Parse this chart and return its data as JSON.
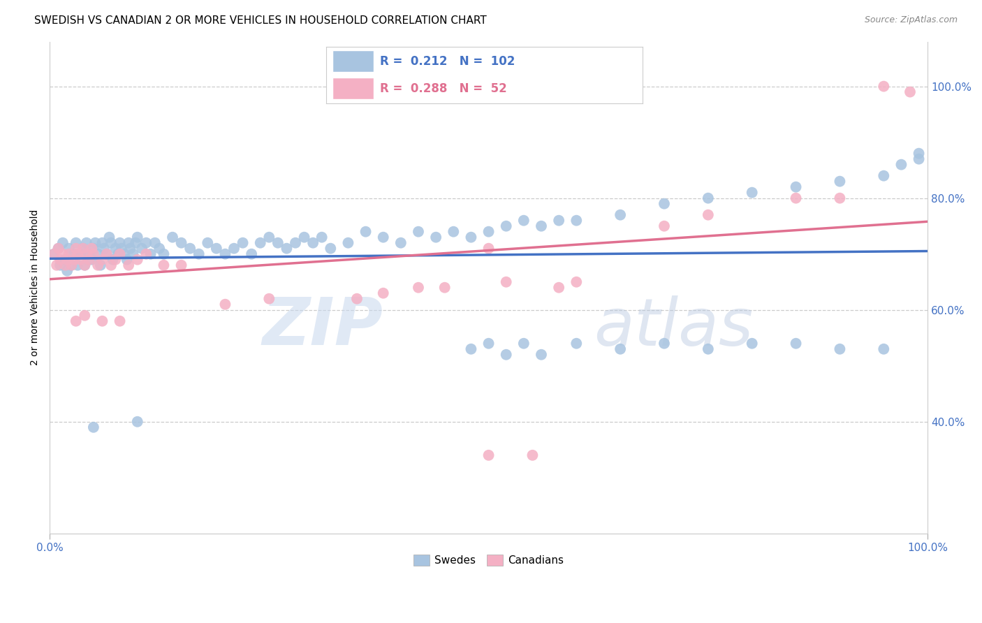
{
  "title": "SWEDISH VS CANADIAN 2 OR MORE VEHICLES IN HOUSEHOLD CORRELATION CHART",
  "source": "Source: ZipAtlas.com",
  "ylabel": "2 or more Vehicles in Household",
  "swedes_color": "#a8c4e0",
  "canadians_color": "#f4b0c4",
  "swedes_line_color": "#4472c4",
  "canadians_line_color": "#e07090",
  "swedes_R": 0.212,
  "swedes_N": 102,
  "canadians_R": 0.288,
  "canadians_N": 52,
  "background_color": "#ffffff",
  "grid_color": "#cccccc",
  "axis_tick_color": "#4472c4",
  "watermark": "ZIPatlas",
  "watermark_color": "#d0dff0",
  "ylim_low": 0.2,
  "ylim_high": 1.08,
  "swedes_x": [
    0.005,
    0.01,
    0.012,
    0.015,
    0.018,
    0.02,
    0.022,
    0.025,
    0.028,
    0.03,
    0.032,
    0.035,
    0.038,
    0.04,
    0.042,
    0.045,
    0.048,
    0.05,
    0.052,
    0.055,
    0.058,
    0.06,
    0.062,
    0.065,
    0.068,
    0.07,
    0.072,
    0.075,
    0.078,
    0.08,
    0.082,
    0.085,
    0.088,
    0.09,
    0.092,
    0.095,
    0.098,
    0.1,
    0.105,
    0.11,
    0.115,
    0.12,
    0.125,
    0.13,
    0.14,
    0.15,
    0.16,
    0.17,
    0.18,
    0.19,
    0.2,
    0.21,
    0.22,
    0.23,
    0.24,
    0.25,
    0.26,
    0.27,
    0.28,
    0.29,
    0.3,
    0.31,
    0.32,
    0.34,
    0.36,
    0.38,
    0.4,
    0.42,
    0.44,
    0.46,
    0.48,
    0.5,
    0.52,
    0.54,
    0.56,
    0.58,
    0.6,
    0.65,
    0.7,
    0.75,
    0.8,
    0.85,
    0.9,
    0.95,
    0.97,
    0.99,
    0.48,
    0.5,
    0.52,
    0.54,
    0.56,
    0.6,
    0.65,
    0.7,
    0.75,
    0.8,
    0.85,
    0.9,
    0.95,
    0.99,
    0.05,
    0.1
  ],
  "swedes_y": [
    0.7,
    0.71,
    0.68,
    0.72,
    0.69,
    0.67,
    0.71,
    0.68,
    0.7,
    0.72,
    0.68,
    0.7,
    0.71,
    0.68,
    0.72,
    0.7,
    0.69,
    0.71,
    0.72,
    0.7,
    0.68,
    0.72,
    0.71,
    0.7,
    0.73,
    0.72,
    0.69,
    0.71,
    0.7,
    0.72,
    0.71,
    0.7,
    0.69,
    0.72,
    0.71,
    0.7,
    0.72,
    0.73,
    0.71,
    0.72,
    0.7,
    0.72,
    0.71,
    0.7,
    0.73,
    0.72,
    0.71,
    0.7,
    0.72,
    0.71,
    0.7,
    0.71,
    0.72,
    0.7,
    0.72,
    0.73,
    0.72,
    0.71,
    0.72,
    0.73,
    0.72,
    0.73,
    0.71,
    0.72,
    0.74,
    0.73,
    0.72,
    0.74,
    0.73,
    0.74,
    0.73,
    0.74,
    0.75,
    0.76,
    0.75,
    0.76,
    0.76,
    0.77,
    0.79,
    0.8,
    0.81,
    0.82,
    0.83,
    0.84,
    0.86,
    0.87,
    0.53,
    0.54,
    0.52,
    0.54,
    0.52,
    0.54,
    0.53,
    0.54,
    0.53,
    0.54,
    0.54,
    0.53,
    0.53,
    0.88,
    0.39,
    0.4
  ],
  "canadians_x": [
    0.005,
    0.008,
    0.01,
    0.012,
    0.015,
    0.018,
    0.02,
    0.022,
    0.025,
    0.028,
    0.03,
    0.032,
    0.035,
    0.038,
    0.04,
    0.042,
    0.045,
    0.048,
    0.05,
    0.055,
    0.06,
    0.065,
    0.07,
    0.075,
    0.08,
    0.09,
    0.1,
    0.11,
    0.13,
    0.15,
    0.2,
    0.25,
    0.35,
    0.38,
    0.42,
    0.45,
    0.5,
    0.52,
    0.58,
    0.6,
    0.7,
    0.75,
    0.85,
    0.9,
    0.95,
    0.98,
    0.03,
    0.04,
    0.06,
    0.08,
    0.5,
    0.55
  ],
  "canadians_y": [
    0.7,
    0.68,
    0.71,
    0.69,
    0.7,
    0.68,
    0.69,
    0.7,
    0.68,
    0.69,
    0.71,
    0.7,
    0.69,
    0.71,
    0.68,
    0.7,
    0.69,
    0.71,
    0.7,
    0.68,
    0.69,
    0.7,
    0.68,
    0.69,
    0.7,
    0.68,
    0.69,
    0.7,
    0.68,
    0.68,
    0.61,
    0.62,
    0.62,
    0.63,
    0.64,
    0.64,
    0.71,
    0.65,
    0.64,
    0.65,
    0.75,
    0.77,
    0.8,
    0.8,
    1.0,
    0.99,
    0.58,
    0.59,
    0.58,
    0.58,
    0.34,
    0.34
  ]
}
